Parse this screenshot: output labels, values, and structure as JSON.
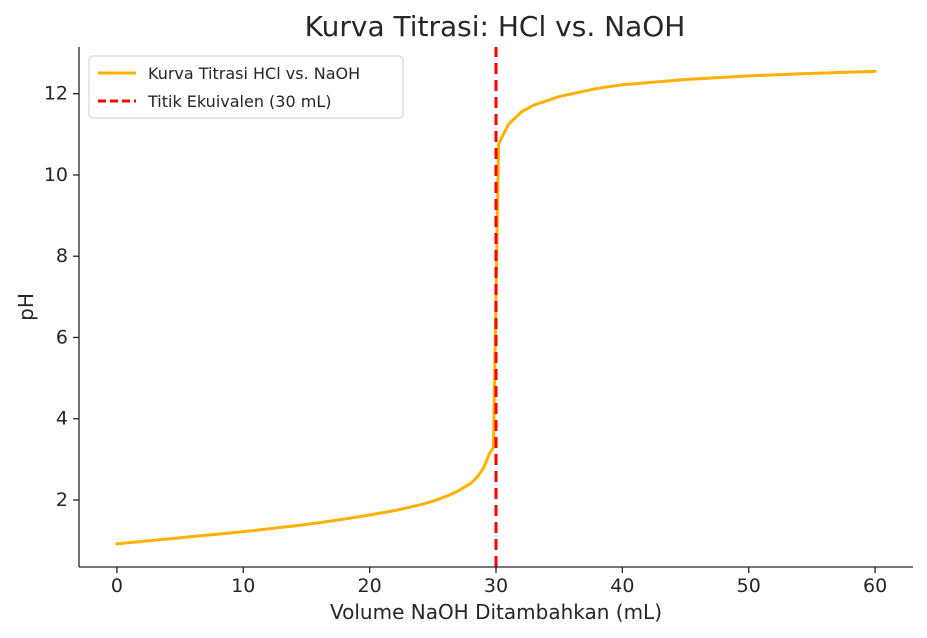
{
  "chart_data": {
    "type": "line",
    "title": "Kurva Titrasi: HCl vs. NaOH",
    "xlabel": "Volume NaOH Ditambahkan (mL)",
    "ylabel": "pH",
    "xlim": [
      -3,
      63
    ],
    "ylim": [
      0.35,
      13.15
    ],
    "xticks": [
      0,
      10,
      20,
      30,
      40,
      50,
      60
    ],
    "yticks": [
      2,
      4,
      6,
      8,
      10,
      12
    ],
    "grid": false,
    "legend_position": "top-left",
    "series": [
      {
        "name": "Kurva Titrasi HCl vs. NaOH",
        "color": "#FFB000",
        "style": "solid",
        "x": [
          0,
          2,
          4,
          6,
          8,
          10,
          12,
          14,
          16,
          18,
          20,
          22,
          24,
          25,
          26,
          27,
          28,
          28.5,
          29,
          29.5,
          29.8,
          30,
          30.2,
          30.5,
          31,
          32,
          33,
          35,
          38,
          40,
          45,
          50,
          55,
          60
        ],
        "y": [
          0.92,
          0.98,
          1.04,
          1.1,
          1.16,
          1.22,
          1.29,
          1.36,
          1.44,
          1.53,
          1.63,
          1.74,
          1.88,
          1.97,
          2.08,
          2.22,
          2.41,
          2.56,
          2.78,
          3.15,
          3.3,
          7.0,
          10.75,
          10.95,
          11.25,
          11.55,
          11.72,
          11.93,
          12.13,
          12.22,
          12.35,
          12.44,
          12.5,
          12.55
        ]
      },
      {
        "name": "Titik Ekuivalen (30 mL)",
        "color": "#FF0000",
        "style": "dashed",
        "x": [
          30,
          30
        ],
        "y": [
          0.35,
          13.15
        ]
      }
    ]
  }
}
